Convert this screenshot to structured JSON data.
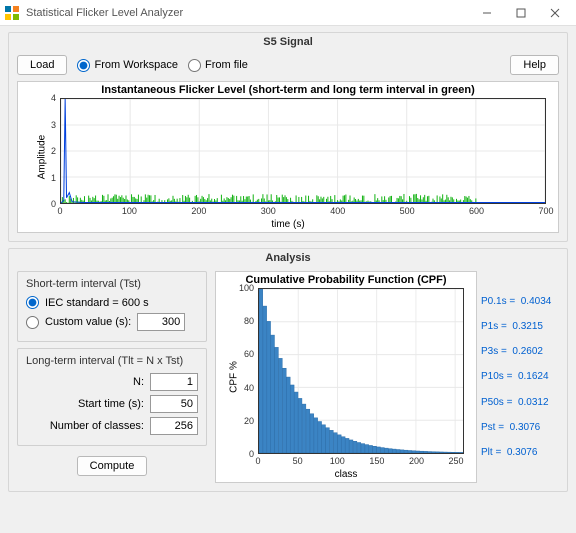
{
  "window": {
    "title": "Statistical Flicker Level Analyzer"
  },
  "signal_panel": {
    "title": "S5 Signal",
    "load_btn": "Load",
    "radio_workspace": "From Workspace",
    "radio_file": "From file",
    "help_btn": "Help",
    "chart": {
      "title": "Instantaneous Flicker Level (short-term and long term interval in green)",
      "ylabel": "Amplitude",
      "xlabel": "time (s)",
      "xlim": [
        0,
        700
      ],
      "ylim": [
        0,
        4
      ],
      "xticks": [
        0,
        100,
        200,
        300,
        400,
        500,
        600,
        700
      ],
      "yticks": [
        0,
        1,
        2,
        3,
        4
      ],
      "grid_color": "#e8e8e8",
      "spike_color": "#0040dd",
      "short_term_end": 600,
      "noise_color": "#14b314",
      "spike": {
        "x": 6,
        "peak": 4.0
      },
      "noise_amplitude_max": 0.35,
      "background": "#ffffff"
    }
  },
  "analysis_panel": {
    "title": "Analysis",
    "short_term": {
      "title": "Short-term interval  (Tst)",
      "iec_label": "IEC standard  = 600 s",
      "custom_label": "Custom value (s):",
      "custom_value": "300"
    },
    "long_term": {
      "title": "Long-term interval (Tlt = N x Tst)",
      "n_label": "N:",
      "n_value": "1",
      "start_label": "Start time (s):",
      "start_value": "50",
      "classes_label": "Number of classes:",
      "classes_value": "256"
    },
    "compute_btn": "Compute",
    "cpf_chart": {
      "title": "Cumulative Probability Function (CPF)",
      "ylabel": "CPF %",
      "xlabel": "class",
      "xlim": [
        0,
        260
      ],
      "ylim": [
        0,
        100
      ],
      "xticks": [
        0,
        50,
        100,
        150,
        200,
        250
      ],
      "yticks": [
        0,
        20,
        40,
        60,
        80,
        100
      ],
      "bar_color": "#3b84c4",
      "bar_edge": "#2a6ca8",
      "grid_color": "#e8e8e8",
      "background": "#ffffff",
      "n_bars": 52,
      "decay_shape": "exponential",
      "start_value": 100,
      "tail_value": 0
    },
    "stats": [
      {
        "label": "P0.1s =",
        "value": "0.4034"
      },
      {
        "label": "P1s =",
        "value": "0.3215"
      },
      {
        "label": "P3s =",
        "value": "0.2602"
      },
      {
        "label": "P10s =",
        "value": "0.1624"
      },
      {
        "label": "P50s =",
        "value": "0.0312"
      },
      {
        "label": "Pst =",
        "value": "0.3076"
      },
      {
        "label": "Plt =",
        "value": "0.3076"
      }
    ]
  }
}
